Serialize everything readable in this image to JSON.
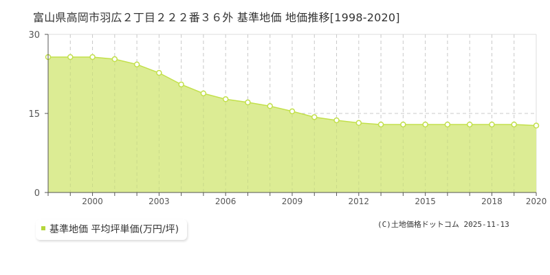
{
  "title": "富山県高岡市羽広２丁目２２２番３６外 基準地価 地価推移[1998-2020]",
  "legend": {
    "label": "基準地価 平均坪単価(万円/坪)",
    "color": "#b5d63b"
  },
  "copyright": "(C)土地価格ドットコム 2025-11-13",
  "colors": {
    "fill": "#dcec94",
    "line": "#c2e04a",
    "grid": "#c8c8c8",
    "axis": "#555555"
  },
  "chart_data": {
    "type": "area",
    "title": "富山県高岡市羽広２丁目２２２番３６外 基準地価 地価推移[1998-2020]",
    "xlabel": "",
    "ylabel": "",
    "ylim": [
      0,
      30
    ],
    "yticks": [
      0,
      15,
      30
    ],
    "xtick_labels": [
      "2000",
      "2003",
      "2006",
      "2009",
      "2012",
      "2015",
      "2018",
      "2020"
    ],
    "grid": true,
    "legend_position": "bottom-left",
    "x": [
      1998,
      1999,
      2000,
      2001,
      2002,
      2003,
      2004,
      2005,
      2006,
      2007,
      2008,
      2009,
      2010,
      2011,
      2012,
      2013,
      2014,
      2015,
      2016,
      2017,
      2018,
      2019,
      2020
    ],
    "series": [
      {
        "name": "基準地価 平均坪単価(万円/坪)",
        "values": [
          25.7,
          25.7,
          25.7,
          25.3,
          24.3,
          22.7,
          20.5,
          18.8,
          17.7,
          17.1,
          16.4,
          15.4,
          14.3,
          13.7,
          13.2,
          12.9,
          12.9,
          12.9,
          12.9,
          12.9,
          12.9,
          12.9,
          12.7
        ]
      }
    ]
  }
}
